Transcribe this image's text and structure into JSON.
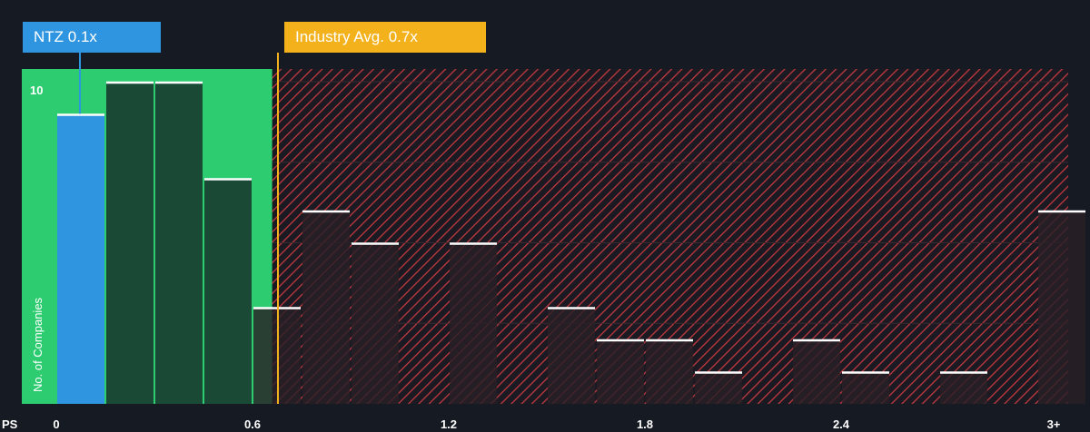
{
  "chart_data": {
    "type": "bar",
    "xlabel": "PS",
    "ylabel": "No. of Companies",
    "x_ticks": [
      "0",
      "0.6",
      "1.2",
      "1.8",
      "2.4",
      "3+"
    ],
    "y_ticks": [
      "10"
    ],
    "ylim": [
      0,
      10.3
    ],
    "bins": [
      {
        "x0": 0.0,
        "x1": 0.15,
        "count": 9
      },
      {
        "x0": 0.15,
        "x1": 0.3,
        "count": 10
      },
      {
        "x0": 0.3,
        "x1": 0.45,
        "count": 10
      },
      {
        "x0": 0.45,
        "x1": 0.6,
        "count": 7
      },
      {
        "x0": 0.6,
        "x1": 0.75,
        "count": 3
      },
      {
        "x0": 0.75,
        "x1": 0.9,
        "count": 6
      },
      {
        "x0": 0.9,
        "x1": 1.05,
        "count": 5
      },
      {
        "x0": 1.05,
        "x1": 1.2,
        "count": 0
      },
      {
        "x0": 1.2,
        "x1": 1.35,
        "count": 5
      },
      {
        "x0": 1.35,
        "x1": 1.5,
        "count": 0
      },
      {
        "x0": 1.5,
        "x1": 1.65,
        "count": 3
      },
      {
        "x0": 1.65,
        "x1": 1.8,
        "count": 2
      },
      {
        "x0": 1.8,
        "x1": 1.95,
        "count": 2
      },
      {
        "x0": 1.95,
        "x1": 2.1,
        "count": 1
      },
      {
        "x0": 2.1,
        "x1": 2.25,
        "count": 0
      },
      {
        "x0": 2.25,
        "x1": 2.4,
        "count": 2
      },
      {
        "x0": 2.4,
        "x1": 2.55,
        "count": 1
      },
      {
        "x0": 2.55,
        "x1": 2.7,
        "count": 0
      },
      {
        "x0": 2.7,
        "x1": 2.85,
        "count": 1
      },
      {
        "x0": 2.85,
        "x1": 3.0,
        "count": 0
      },
      {
        "x0": 3.0,
        "x1": 3.15,
        "count": 6
      }
    ],
    "subject": {
      "label": "NTZ 0.1x",
      "value": 0.1,
      "bin_index": 0
    },
    "industry_avg": {
      "label": "Industry Avg. 0.7x",
      "value": 0.7
    },
    "fair_range_max": 0.66,
    "colors": {
      "background": "#151a23",
      "fair_zone": "#2ecc71",
      "subject_bar": "#2f95e0",
      "bar_fill_green_zone": "#1a4a36",
      "bar_fill_red_zone": "#2a2026",
      "bar_cap": "#ffffff",
      "hatch_line": "#c0393f",
      "industry_line": "#f3b11c",
      "gridline": "#3a2a30"
    },
    "grid": true
  }
}
